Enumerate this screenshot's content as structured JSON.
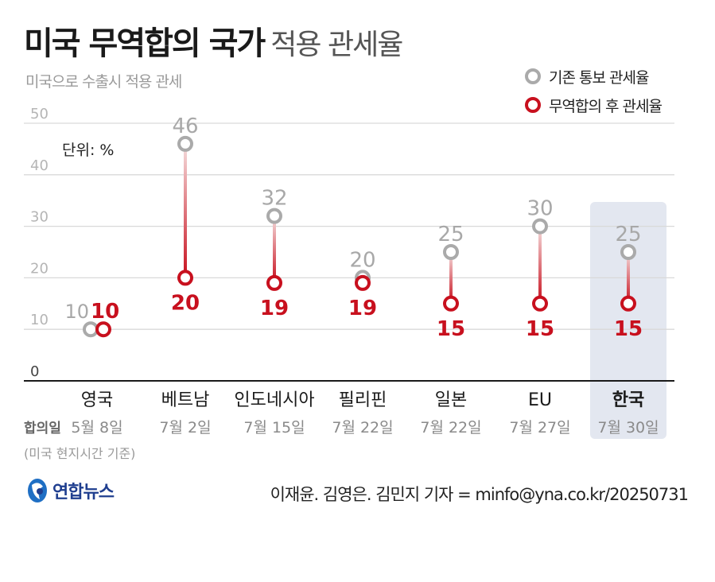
{
  "title": {
    "bold": "미국 무역합의 국가",
    "light": "적용 관세율"
  },
  "subtitle": "미국으로 수출시 적용 관세",
  "legend": {
    "before": "기존 통보 관세율",
    "after": "무역합의 후 관세율"
  },
  "colors": {
    "before": "#aaaaaa",
    "after": "#c8101e",
    "highlight_bg": "#e3e7f0",
    "grid": "#d9d9d9"
  },
  "row_labels": {
    "date_row": "합의일",
    "date_note": "(미국 현지시간 기준)"
  },
  "footer": {
    "logo_text": "연합뉴스",
    "credit": "이재윤. 김영은. 김민지 기자 = minfo@yna.co.kr/20250731"
  },
  "chart_data": {
    "type": "dumbbell",
    "unit_label": "단위: %",
    "ylim": [
      0,
      50
    ],
    "yticks": [
      0,
      10,
      20,
      30,
      40,
      50
    ],
    "grid": true,
    "legend_position": "top-right",
    "categories": [
      "영국",
      "베트남",
      "인도네시아",
      "필리핀",
      "일본",
      "EU",
      "한국"
    ],
    "dates": [
      "5월 8일",
      "7월 2일",
      "7월 15일",
      "7월 22일",
      "7월 22일",
      "7월 27일",
      "7월 30일"
    ],
    "highlight": "한국",
    "series": [
      {
        "name": "기존 통보 관세율",
        "values": [
          10,
          46,
          32,
          20,
          25,
          30,
          25
        ]
      },
      {
        "name": "무역합의 후 관세율",
        "values": [
          10,
          20,
          19,
          19,
          15,
          15,
          15
        ]
      }
    ]
  }
}
